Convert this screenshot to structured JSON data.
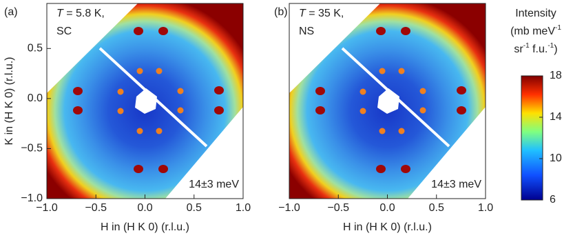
{
  "chart_data": [
    {
      "type": "heatmap",
      "panel_label": "(a)",
      "annotation": [
        "T",
        " = 5.8 K,"
      ],
      "state": "SC",
      "energy": "14±3 meV",
      "xlabel": "H in (H K 0)  (r.l.u.)",
      "ylabel": "K in (H K 0)  (r.l.u.)",
      "xlim": [
        -1.0,
        1.0
      ],
      "ylim": [
        -1.0,
        0.95
      ],
      "xticks": [
        {
          "value": -1.0,
          "label": "−1.0"
        },
        {
          "value": -0.5,
          "label": "−0.5"
        },
        {
          "value": 0,
          "label": "0.0"
        },
        0.5,
        {
          "value": 1.0,
          "label": "1.0"
        }
      ],
      "yticks": [
        {
          "value": -1.0,
          "label": "−1.0"
        },
        {
          "value": -0.5,
          "label": "−0.5"
        },
        {
          "value": 0,
          "label": "0.0"
        },
        0.5
      ]
    },
    {
      "type": "heatmap",
      "panel_label": "(b)",
      "annotation": [
        "T",
        " = 35 K,"
      ],
      "state": "NS",
      "energy": "14±3 meV",
      "xlabel": "H in (H K 0)  (r.l.u.)",
      "xlim": [
        -1.0,
        1.0
      ],
      "ylim": [
        -1.0,
        0.95
      ],
      "xticks": [
        {
          "value": -1.0,
          "label": "−1.0"
        },
        {
          "value": -0.5,
          "label": "−0.5"
        },
        {
          "value": 0,
          "label": "0.0"
        },
        0.5,
        {
          "value": 1.0,
          "label": "1.0"
        }
      ],
      "colorbar": {
        "title": "Intensity",
        "unit_line1": [
          "(mb meV",
          "-1"
        ],
        "unit_line2": [
          "sr",
          "-1",
          " f.u.",
          "-1",
          ")"
        ],
        "lim": [
          6,
          18
        ],
        "ticks": [
          6,
          10,
          14,
          18
        ]
      }
    }
  ]
}
